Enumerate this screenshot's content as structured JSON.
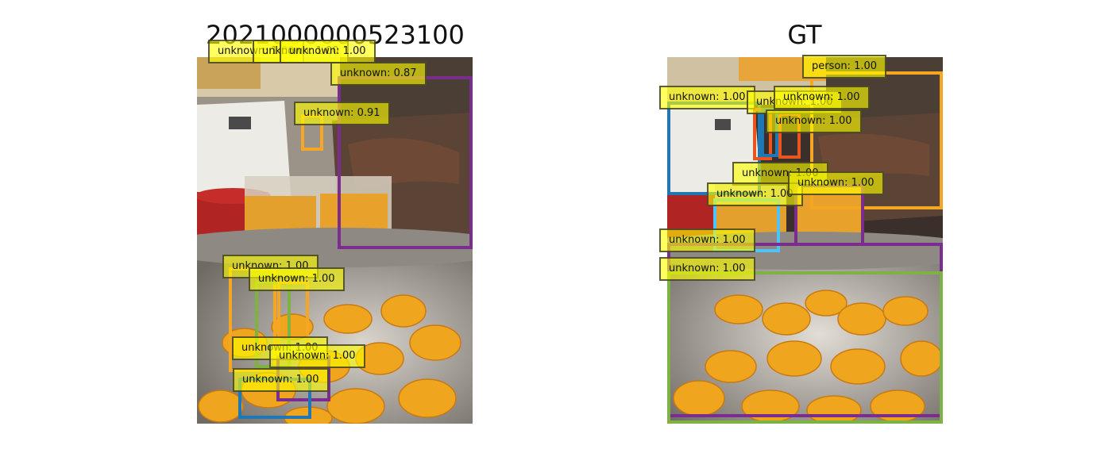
{
  "colors": {
    "box_label_fill": "#ffff00",
    "purple": "#7b2d8e",
    "orange": "#f5a623",
    "blue": "#1f77b4",
    "green": "#7cb342",
    "light_blue": "#4fc3f7",
    "dark_orange": "#e8551e",
    "yellow": "#f2d13a"
  },
  "left_panel": {
    "title": "2021000000523100",
    "detections": [
      {
        "label": "unknown: 1.00",
        "color": "#2ca02c"
      },
      {
        "label": "unknown: 1.00",
        "color": "#f5a623"
      },
      {
        "label": "unknown: 1.00",
        "color": "#f2d13a"
      },
      {
        "label": "unknown: 0.87",
        "color": "#7b2d8e"
      },
      {
        "label": "unknown: 0.91",
        "color": "#f5a623"
      },
      {
        "label": "unknown: 1.00",
        "color": "#f5a623"
      },
      {
        "label": "unknown: 1.00",
        "color": "#7cb342"
      },
      {
        "label": "unknown: 1.00",
        "color": "#f5a623"
      },
      {
        "label": "unknown: 1.00",
        "color": "#7b2d8e"
      },
      {
        "label": "unknown: 1.00",
        "color": "#1f77b4"
      }
    ]
  },
  "right_panel": {
    "title": "GT",
    "detections": [
      {
        "label": "person: 1.00",
        "color": "#f5a623"
      },
      {
        "label": "unknown: 1.00",
        "color": "#1f77b4"
      },
      {
        "label": "unknown: 1.00",
        "color": "#e8551e"
      },
      {
        "label": "unknown: 1.00",
        "color": "#1f77b4"
      },
      {
        "label": "unknown: 1.00",
        "color": "#e8551e"
      },
      {
        "label": "unknown: 1.00",
        "color": "#f2d13a"
      },
      {
        "label": "unknown: 1.00",
        "color": "#4fc3f7"
      },
      {
        "label": "unknown: 1.00",
        "color": "#7b2d8e"
      },
      {
        "label": "unknown: 1.00",
        "color": "#7b2d8e"
      },
      {
        "label": "unknown: 1.00",
        "color": "#7cb342"
      }
    ]
  }
}
